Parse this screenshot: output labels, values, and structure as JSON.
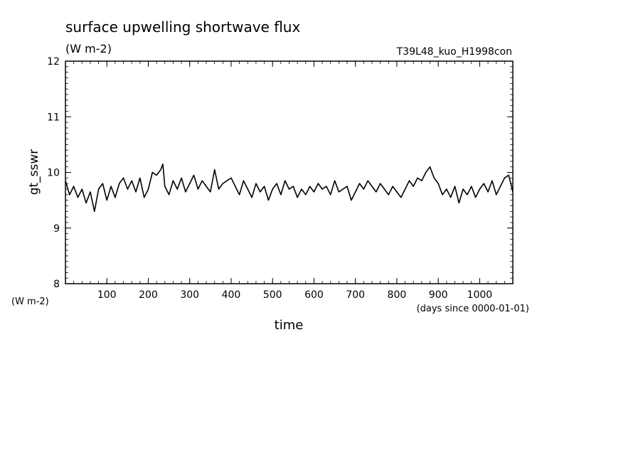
{
  "chart_data": {
    "type": "line",
    "title": "surface upwelling shortwave flux",
    "subtitle": "(W m-2)",
    "experiment": "T39L48_kuo_H1998con",
    "ylabel": "gt_sswr",
    "yunit": "(W m-2)",
    "xlabel": "time",
    "xunit": "(days since 0000-01-01)",
    "xlim": [
      0,
      1080
    ],
    "ylim": [
      8,
      12
    ],
    "xticks": [
      100,
      200,
      300,
      400,
      500,
      600,
      700,
      800,
      900,
      1000
    ],
    "yticks": [
      8,
      9,
      10,
      11,
      12
    ],
    "grid": false,
    "series": [
      {
        "x": [
          0,
          10,
          20,
          30,
          40,
          50,
          60,
          70,
          80,
          90,
          100,
          110,
          120,
          130,
          140,
          150,
          160,
          170,
          180,
          190,
          200,
          210,
          220,
          230,
          235,
          240,
          250,
          260,
          270,
          280,
          290,
          300,
          310,
          320,
          330,
          340,
          350,
          360,
          370,
          380,
          390,
          400,
          410,
          420,
          430,
          440,
          450,
          460,
          470,
          480,
          490,
          500,
          510,
          520,
          530,
          540,
          550,
          560,
          570,
          580,
          590,
          600,
          610,
          620,
          630,
          640,
          650,
          660,
          670,
          680,
          690,
          700,
          710,
          720,
          730,
          740,
          750,
          760,
          770,
          780,
          790,
          800,
          810,
          820,
          830,
          840,
          850,
          860,
          870,
          880,
          890,
          900,
          910,
          920,
          930,
          940,
          950,
          960,
          970,
          980,
          990,
          1000,
          1010,
          1020,
          1030,
          1040,
          1050,
          1060,
          1070,
          1080
        ],
        "y": [
          9.85,
          9.6,
          9.75,
          9.55,
          9.7,
          9.45,
          9.65,
          9.3,
          9.7,
          9.8,
          9.5,
          9.75,
          9.55,
          9.8,
          9.9,
          9.7,
          9.85,
          9.65,
          9.9,
          9.55,
          9.7,
          10.0,
          9.95,
          10.05,
          10.15,
          9.75,
          9.6,
          9.85,
          9.7,
          9.9,
          9.65,
          9.8,
          9.95,
          9.7,
          9.85,
          9.75,
          9.65,
          10.05,
          9.7,
          9.8,
          9.85,
          9.9,
          9.75,
          9.6,
          9.85,
          9.7,
          9.55,
          9.8,
          9.65,
          9.75,
          9.5,
          9.7,
          9.8,
          9.6,
          9.85,
          9.7,
          9.75,
          9.55,
          9.7,
          9.6,
          9.75,
          9.65,
          9.8,
          9.7,
          9.75,
          9.6,
          9.85,
          9.65,
          9.7,
          9.75,
          9.5,
          9.65,
          9.8,
          9.7,
          9.85,
          9.75,
          9.65,
          9.8,
          9.7,
          9.6,
          9.75,
          9.65,
          9.55,
          9.7,
          9.85,
          9.75,
          9.9,
          9.85,
          10.0,
          10.1,
          9.9,
          9.8,
          9.6,
          9.7,
          9.55,
          9.75,
          9.45,
          9.7,
          9.6,
          9.75,
          9.55,
          9.7,
          9.8,
          9.65,
          9.85,
          9.6,
          9.75,
          9.9,
          9.95,
          9.65
        ]
      }
    ]
  }
}
